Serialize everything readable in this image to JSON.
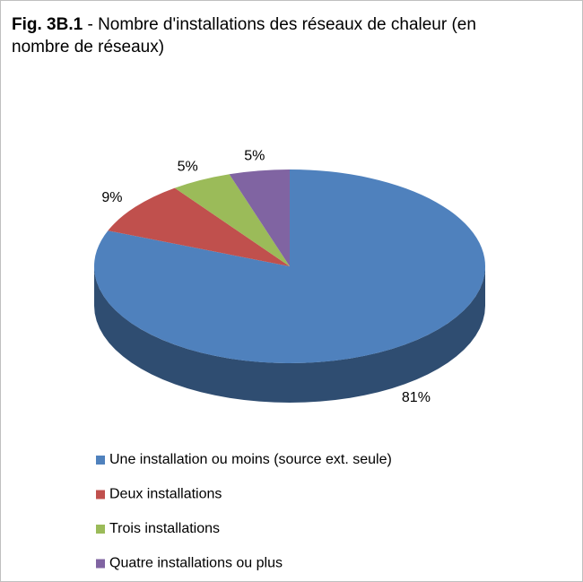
{
  "chart_data": {
    "type": "pie",
    "figure_label": "Fig. 3B.1",
    "title": "- Nombre d'installations des réseaux de chaleur (en nombre de réseaux)",
    "categories": [
      "Une installation ou moins (source ext. seule)",
      "Deux installations",
      "Trois installations",
      "Quatre installations ou plus"
    ],
    "values": [
      81,
      9,
      5,
      5
    ],
    "value_labels": [
      "81%",
      "9%",
      "5%",
      "5%"
    ],
    "colors": [
      "#4f81bd",
      "#c0504d",
      "#9bbb59",
      "#8064a2"
    ],
    "legend": "bottom"
  }
}
